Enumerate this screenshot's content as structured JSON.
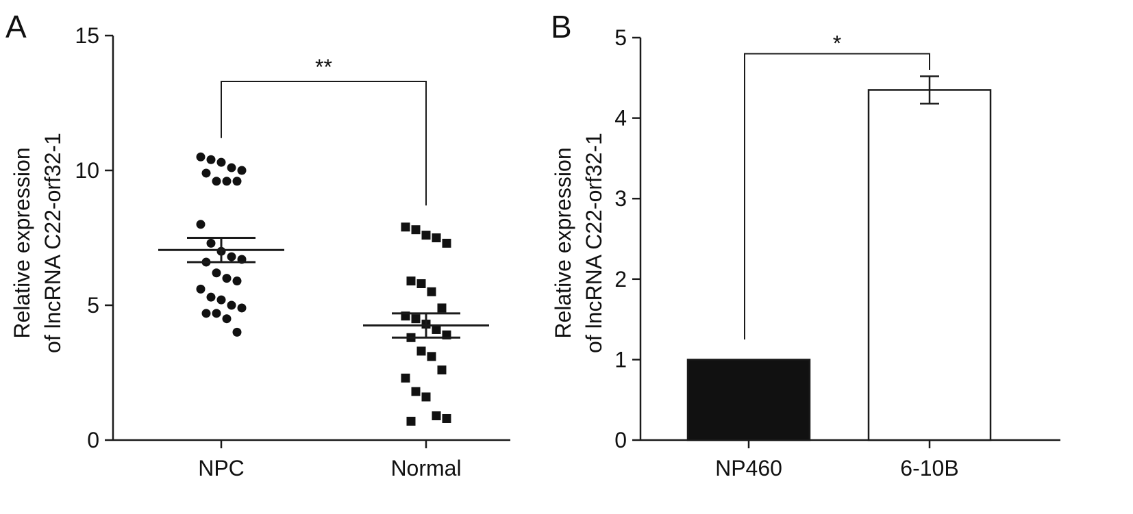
{
  "chart_data": [
    {
      "type": "scatter",
      "panel_label": "A",
      "ylabel": [
        "Relative expression",
        "of lncRNA C22-orf32-1"
      ],
      "ylim": [
        0,
        15
      ],
      "yticks": [
        0,
        5,
        10,
        15
      ],
      "categories": [
        "NPC",
        "Normal"
      ],
      "series": [
        {
          "category": "NPC",
          "marker": "circle",
          "values": [
            10.5,
            10.4,
            10.3,
            10.1,
            10.0,
            9.9,
            9.6,
            9.6,
            9.6,
            8.0,
            7.3,
            7.0,
            6.8,
            6.7,
            6.6,
            6.2,
            6.0,
            5.9,
            5.6,
            5.3,
            5.2,
            5.0,
            4.9,
            4.7,
            4.7,
            4.5,
            4.0
          ],
          "mean": 7.05,
          "sem_low": 6.6,
          "sem_high": 7.5
        },
        {
          "category": "Normal",
          "marker": "square",
          "values": [
            7.9,
            7.8,
            7.6,
            7.5,
            7.3,
            5.9,
            5.8,
            5.5,
            4.9,
            4.6,
            4.5,
            4.3,
            4.1,
            3.9,
            3.8,
            3.3,
            3.1,
            2.6,
            2.3,
            1.8,
            1.6,
            0.9,
            0.8,
            0.7
          ],
          "mean": 4.25,
          "sem_low": 3.8,
          "sem_high": 4.7
        }
      ],
      "significance": "**"
    },
    {
      "type": "bar",
      "panel_label": "B",
      "ylabel": [
        "Relative expression",
        "of lncRNA C22-orf32-1"
      ],
      "ylim": [
        0,
        5
      ],
      "yticks": [
        0,
        1,
        2,
        3,
        4,
        5
      ],
      "categories": [
        "NP460",
        "6-10B"
      ],
      "values": [
        1.0,
        4.35
      ],
      "errors": [
        0.0,
        0.17
      ],
      "colors": [
        "#111111",
        "#ffffff"
      ],
      "significance": "*"
    }
  ]
}
